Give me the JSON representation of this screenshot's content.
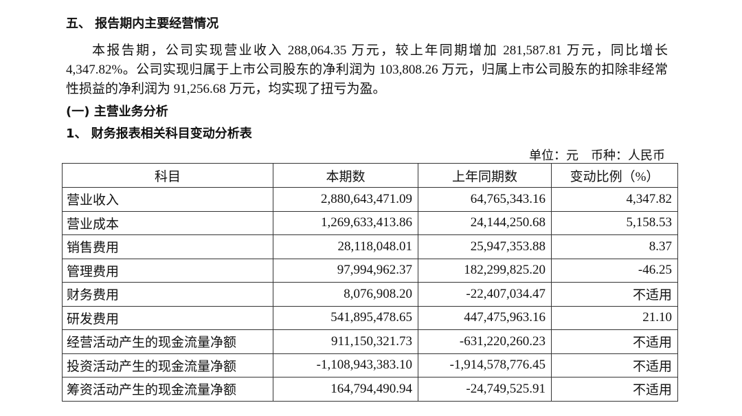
{
  "section_heading": "五、 报告期内主要经营情况",
  "paragraph": "本报告期，公司实现营业收入 288,064.35 万元，较上年同期增加 281,587.81 万元，同比增长 4,347.82%。公司实现归属于上市公司股东的净利润为 103,808.26 万元，归属上市公司股东的扣除非经常性损益的净利润为 91,256.68 万元，均实现了扭亏为盈。",
  "subheading": "(一) 主营业务分析",
  "table_title": "1、 财务报表相关科目变动分析表",
  "unit_note": "单位：元　币种：人民币",
  "table": {
    "headers": [
      "科目",
      "本期数",
      "上年同期数",
      "变动比例（%）"
    ],
    "rows": [
      [
        "营业收入",
        "2,880,643,471.09",
        "64,765,343.16",
        "4,347.82"
      ],
      [
        "营业成本",
        "1,269,633,413.86",
        "24,144,250.68",
        "5,158.53"
      ],
      [
        "销售费用",
        "28,118,048.01",
        "25,947,353.88",
        "8.37"
      ],
      [
        "管理费用",
        "97,994,962.37",
        "182,299,825.20",
        "-46.25"
      ],
      [
        "财务费用",
        "8,076,908.20",
        "-22,407,034.47",
        "不适用"
      ],
      [
        "研发费用",
        "541,895,478.65",
        "447,475,963.16",
        "21.10"
      ],
      [
        "经营活动产生的现金流量净额",
        "911,150,321.73",
        "-631,220,260.23",
        "不适用"
      ],
      [
        "投资活动产生的现金流量净额",
        "-1,108,943,383.10",
        "-1,914,578,776.45",
        "不适用"
      ],
      [
        "筹资活动产生的现金流量净额",
        "164,794,490.94",
        "-24,749,525.91",
        "不适用"
      ]
    ]
  }
}
